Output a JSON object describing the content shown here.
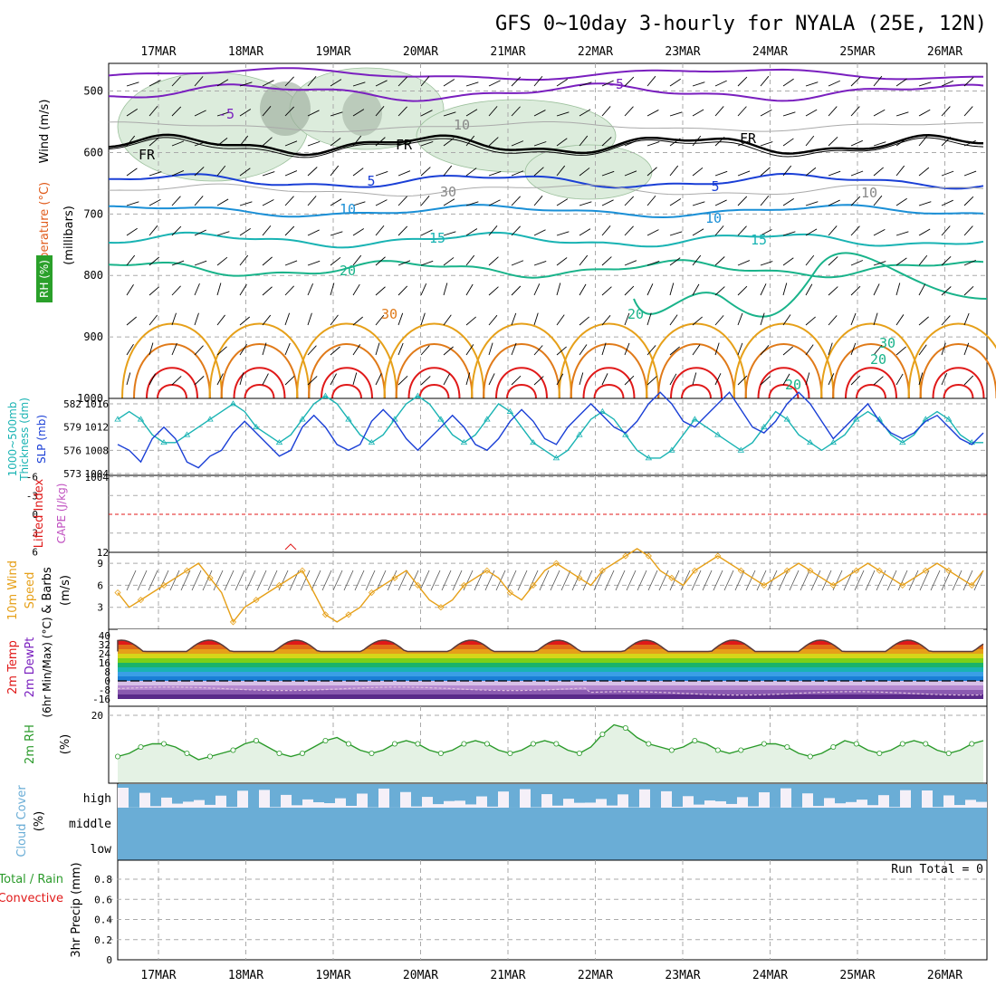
{
  "title": "GFS 0~10day 3-hourly for NYALA (25E, 12N)",
  "dates": [
    "17MAR",
    "18MAR",
    "19MAR",
    "20MAR",
    "21MAR",
    "22MAR",
    "23MAR",
    "24MAR",
    "25MAR",
    "26MAR"
  ],
  "colors": {
    "purple": "#7a1fbf",
    "black": "#000000",
    "blue": "#1a3fd6",
    "lightblue": "#1a8fd6",
    "teal": "#19b3b3",
    "green": "#19b38a",
    "orange": "#e6a019",
    "darkorange": "#e07a19",
    "red": "#e01919",
    "rhfill": "#dcecdc",
    "cloud": "#6aadd6",
    "cloudhigh": "#f5f0f8",
    "slp": "#1a3fd6",
    "thick": "#19b3b3",
    "wind10": "#e6a019",
    "rh2m": "#2a9a2a"
  },
  "panels": {
    "upper": {
      "label_wind": "Wind (m/s)",
      "label_temp": "Temperature (°C)",
      "label_rh": "RH (%)",
      "label_mb": "(millibars)",
      "yticks": [
        "500",
        "600",
        "700",
        "800",
        "900",
        "1000"
      ],
      "contour_labels": [
        "-5",
        "-5",
        "FR",
        "FR",
        "FR",
        "5",
        "5",
        "10",
        "10",
        "15",
        "15",
        "20",
        "20",
        "20",
        "30",
        "30",
        "20",
        "10",
        "10",
        "30"
      ]
    },
    "slp": {
      "label_a": "1000~500mb",
      "label_b": "Thickness (dm)",
      "label_c": "SLP (mb)",
      "left_ticks": [
        "582",
        "579",
        "576",
        "573"
      ],
      "right_ticks": [
        "1016",
        "1012",
        "1008",
        "1004"
      ]
    },
    "cape": {
      "label_a": "Lifted Index",
      "label_b": "CAPE (J/kg)",
      "left_ticks": [
        "-6",
        "-3",
        "0",
        "3",
        "6"
      ],
      "right_ticks": [
        "1004",
        "12"
      ]
    },
    "wind": {
      "label_a": "10m Wind",
      "label_b": "Speed",
      "label_c": "& Barbs",
      "label_d": "(m/s)",
      "ticks": [
        "9",
        "6",
        "3"
      ]
    },
    "temp": {
      "label_a": "2m Temp",
      "label_b": "2m DewPt",
      "label_c": "(6hr Min/Max) (°C)",
      "ticks": [
        "40",
        "32",
        "24",
        "16",
        "8",
        "0",
        "-8",
        "-16"
      ]
    },
    "rh": {
      "label_a": "2m RH",
      "label_b": "(%)",
      "ticks": [
        "20"
      ]
    },
    "cloud": {
      "label_a": "Cloud Cover",
      "label_b": "(%)",
      "levels": [
        "high",
        "middle",
        "low"
      ]
    },
    "precip": {
      "label_a": "Total / Rain",
      "label_b": "Convective",
      "label_c": "3hr Precip (mm)",
      "run_total": "Run Total = 0",
      "ticks": [
        "0.8",
        "0.6",
        "0.4",
        "0.2",
        "0"
      ]
    }
  },
  "chart_data": [
    {
      "type": "line",
      "title": "1000~500mb Thickness (dm) / SLP (mb)",
      "series": [
        {
          "name": "SLP (mb)",
          "values": [
            1009,
            1008,
            1006,
            1010,
            1012,
            1010,
            1006,
            1005,
            1007,
            1008,
            1011,
            1013,
            1011,
            1009,
            1007,
            1008,
            1012,
            1014,
            1012,
            1009,
            1008,
            1009,
            1013,
            1015,
            1013,
            1010,
            1008,
            1010,
            1012,
            1014,
            1012,
            1009,
            1008,
            1010,
            1013,
            1015,
            1013,
            1010,
            1009,
            1012,
            1014,
            1016,
            1014,
            1012,
            1011,
            1013,
            1016,
            1018,
            1016,
            1013,
            1012,
            1014,
            1016,
            1018,
            1015,
            1012,
            1011,
            1013,
            1016,
            1018,
            1016,
            1013,
            1010,
            1012,
            1014,
            1016,
            1013,
            1011,
            1010,
            1011,
            1013,
            1014,
            1012,
            1010,
            1009,
            1011
          ]
        },
        {
          "name": "Thickness (dm)",
          "values": [
            580,
            581,
            580,
            578,
            577,
            577,
            578,
            579,
            580,
            581,
            582,
            581,
            579,
            578,
            577,
            578,
            580,
            582,
            583,
            582,
            580,
            578,
            577,
            578,
            580,
            582,
            583,
            582,
            580,
            578,
            577,
            578,
            580,
            582,
            581,
            579,
            577,
            576,
            575,
            576,
            578,
            580,
            581,
            580,
            578,
            576,
            575,
            575,
            576,
            578,
            580,
            579,
            578,
            577,
            576,
            577,
            579,
            581,
            580,
            578,
            577,
            576,
            577,
            578,
            580,
            581,
            580,
            578,
            577,
            578,
            580,
            581,
            580,
            578,
            577,
            577
          ]
        }
      ],
      "ylim_left": [
        573,
        582
      ],
      "ylim_right": [
        1004,
        1016
      ]
    },
    {
      "type": "line",
      "title": "10m Wind Speed (m/s)",
      "series": [
        {
          "name": "Speed",
          "values": [
            5,
            3,
            4,
            5,
            6,
            7,
            8,
            9,
            7,
            5,
            1,
            3,
            4,
            5,
            6,
            7,
            8,
            5,
            2,
            1,
            2,
            3,
            5,
            6,
            7,
            8,
            6,
            4,
            3,
            4,
            6,
            7,
            8,
            7,
            5,
            4,
            6,
            8,
            9,
            8,
            7,
            6,
            8,
            9,
            10,
            11,
            10,
            8,
            7,
            6,
            8,
            9,
            10,
            9,
            8,
            7,
            6,
            7,
            8,
            9,
            8,
            7,
            6,
            7,
            8,
            9,
            8,
            7,
            6,
            7,
            8,
            9,
            8,
            7,
            6,
            8
          ]
        }
      ],
      "ylim": [
        0,
        10
      ]
    },
    {
      "type": "line",
      "title": "2m RH (%)",
      "series": [
        {
          "name": "2m RH",
          "values": [
            7,
            8,
            10,
            11,
            11,
            10,
            8,
            6,
            7,
            8,
            9,
            11,
            12,
            10,
            8,
            7,
            8,
            10,
            12,
            13,
            11,
            9,
            8,
            9,
            11,
            12,
            11,
            9,
            8,
            9,
            11,
            12,
            11,
            9,
            8,
            9,
            11,
            12,
            11,
            9,
            8,
            10,
            14,
            17,
            16,
            13,
            11,
            10,
            9,
            10,
            12,
            11,
            9,
            8,
            9,
            10,
            11,
            11,
            10,
            8,
            7,
            8,
            10,
            12,
            11,
            9,
            8,
            9,
            11,
            12,
            11,
            9,
            8,
            9,
            11,
            12
          ]
        }
      ],
      "ylim": [
        0,
        20
      ]
    }
  ]
}
